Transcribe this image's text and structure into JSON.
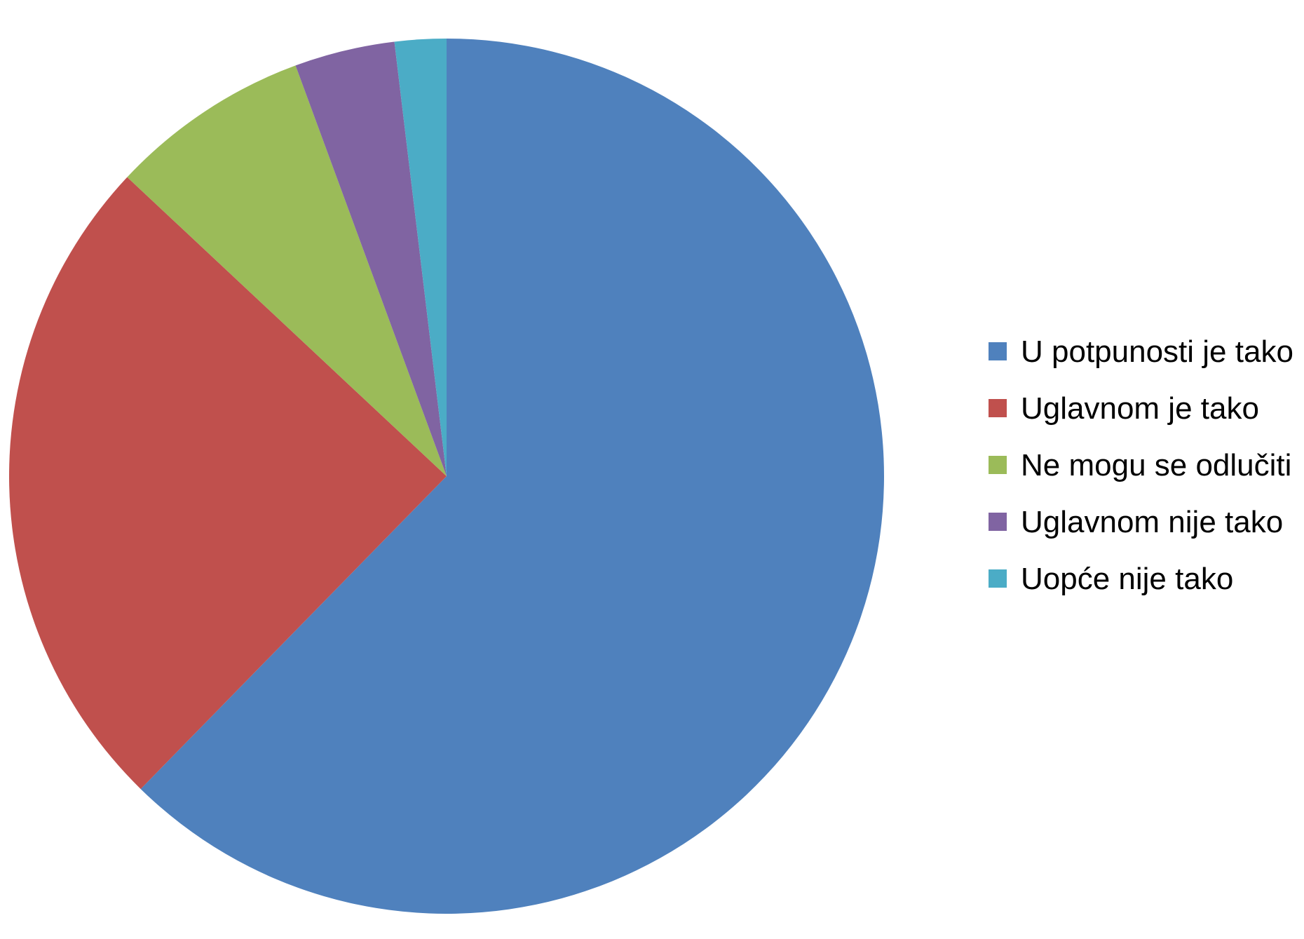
{
  "chart_data": {
    "type": "pie",
    "title": "",
    "legend_position": "right",
    "start_angle": "top",
    "direction": "clockwise",
    "slices": [
      {
        "label": "U potpunosti je tako",
        "value": 62.2,
        "color": "#4F81BD"
      },
      {
        "label": "Uglavnom je tako",
        "value": 24.6,
        "color": "#C0504D"
      },
      {
        "label": "Ne mogu se odlučiti",
        "value": 7.4,
        "color": "#9BBB59"
      },
      {
        "label": "Uglavnom nije tako",
        "value": 3.7,
        "color": "#8064A2"
      },
      {
        "label": "Uopće nije tako",
        "value": 1.9,
        "color": "#4BACC6"
      }
    ]
  }
}
